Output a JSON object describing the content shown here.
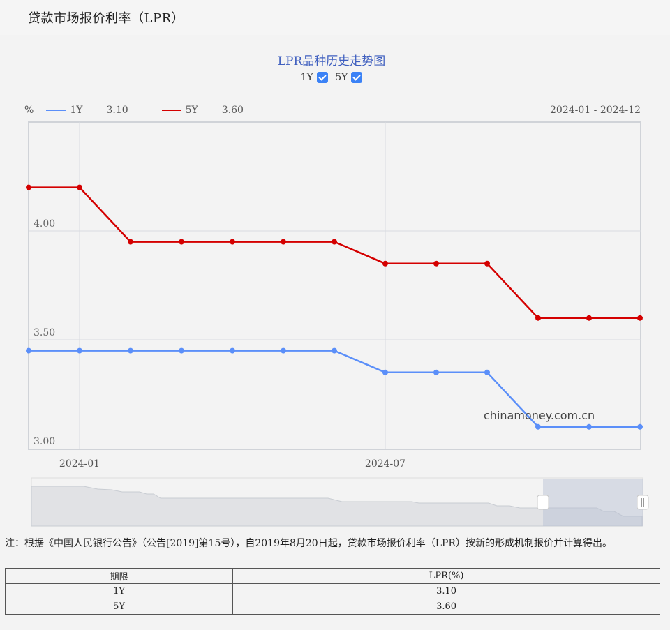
{
  "header": {
    "title": "贷款市场报价利率（LPR）"
  },
  "chart": {
    "title": "LPR品种历史走势图",
    "toggles": [
      {
        "label": "1Y",
        "checked": true
      },
      {
        "label": "5Y",
        "checked": true
      }
    ],
    "unit": "%",
    "legend": [
      {
        "name": "1Y",
        "value": "3.10",
        "color": "#5b8ff9"
      },
      {
        "name": "5Y",
        "value": "3.60",
        "color": "#d40000"
      }
    ],
    "range_label": "2024-01 - 2024-12",
    "watermark": "chinamoney.com.cn",
    "y_ticks": [
      "4.00",
      "3.50",
      "3.00"
    ],
    "x_ticks": [
      "2024-01",
      "2024-07"
    ]
  },
  "chart_data": {
    "type": "line",
    "title": "LPR品种历史走势图",
    "xlabel": "",
    "ylabel": "%",
    "x": [
      "2023-12",
      "2024-01",
      "2024-02",
      "2024-03",
      "2024-04",
      "2024-05",
      "2024-06",
      "2024-07",
      "2024-08",
      "2024-09",
      "2024-10",
      "2024-11",
      "2024-12"
    ],
    "series": [
      {
        "name": "1Y",
        "color": "#5b8ff9",
        "values": [
          3.45,
          3.45,
          3.45,
          3.45,
          3.45,
          3.45,
          3.45,
          3.35,
          3.35,
          3.35,
          3.1,
          3.1,
          3.1
        ]
      },
      {
        "name": "5Y",
        "color": "#d40000",
        "values": [
          4.2,
          4.2,
          3.95,
          3.95,
          3.95,
          3.95,
          3.95,
          3.85,
          3.85,
          3.85,
          3.6,
          3.6,
          3.6
        ]
      }
    ],
    "ylim": [
      3.0,
      4.5
    ],
    "y_ticks": [
      3.0,
      3.5,
      4.0
    ],
    "x_tick_labels": [
      "2024-01",
      "2024-07"
    ],
    "grid": true,
    "legend_position": "top-left",
    "range": "2024-01 - 2024-12"
  },
  "note": "注：根据《中国人民银行公告》（公告[2019]第15号），自2019年8月20日起，贷款市场报价利率（LPR）按新的形成机制报价并计算得出。",
  "table": {
    "headers": [
      "期限",
      "LPR(%)"
    ],
    "rows": [
      [
        "1Y",
        "3.10"
      ],
      [
        "5Y",
        "3.60"
      ]
    ]
  }
}
